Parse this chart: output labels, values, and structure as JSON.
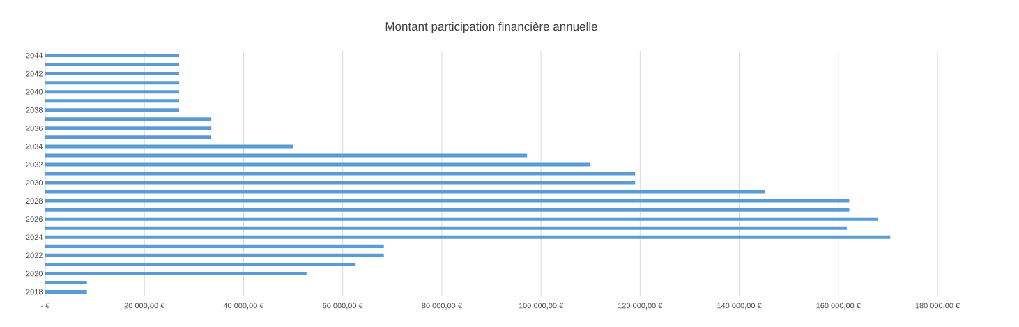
{
  "chart_data": {
    "type": "bar",
    "orientation": "horizontal",
    "title": "Montant participation financière annuelle",
    "categories": [
      "2044",
      null,
      "2042",
      null,
      "2040",
      null,
      "2038",
      null,
      "2036",
      null,
      "2034",
      null,
      "2032",
      null,
      "2030",
      null,
      "2028",
      null,
      "2026",
      null,
      "2024",
      null,
      "2022",
      null,
      "2020",
      null,
      "2018"
    ],
    "values": [
      27000,
      27000,
      27000,
      27000,
      27000,
      27000,
      27000,
      33500,
      33500,
      33500,
      50000,
      97200,
      110000,
      119000,
      119000,
      145200,
      162200,
      162200,
      168000,
      161700,
      170500,
      68300,
      68300,
      62600,
      52700,
      8400,
      8400
    ],
    "color": "#5b9bd5",
    "xlim": [
      0,
      180000
    ],
    "xticks": [
      {
        "value": 0,
        "label": "-   €"
      },
      {
        "value": 20000,
        "label": "20 000,00 €"
      },
      {
        "value": 40000,
        "label": "40 000,00 €"
      },
      {
        "value": 60000,
        "label": "60 000,00 €"
      },
      {
        "value": 80000,
        "label": "80 000,00 €"
      },
      {
        "value": 100000,
        "label": "100 000,00 €"
      },
      {
        "value": 120000,
        "label": "120 000,00 €"
      },
      {
        "value": 140000,
        "label": "140 000,00 €"
      },
      {
        "value": 160000,
        "label": "160 000,00 €"
      },
      {
        "value": 180000,
        "label": "180 000,00 €"
      }
    ],
    "grid": "x"
  }
}
